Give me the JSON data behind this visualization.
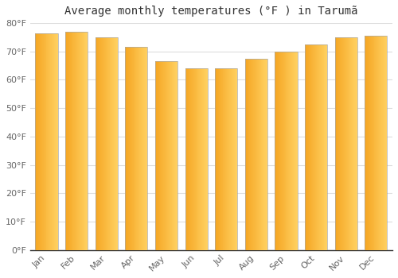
{
  "title": "Average monthly temperatures (°F ) in Tarumã",
  "months": [
    "Jan",
    "Feb",
    "Mar",
    "Apr",
    "May",
    "Jun",
    "Jul",
    "Aug",
    "Sep",
    "Oct",
    "Nov",
    "Dec"
  ],
  "values": [
    76.5,
    77.0,
    75.0,
    71.5,
    66.5,
    64.0,
    64.0,
    67.5,
    70.0,
    72.5,
    75.0,
    75.5
  ],
  "bar_color_left": "#F5A623",
  "bar_color_right": "#FFD060",
  "bar_edge_color": "#AAAAAA",
  "background_color": "#FFFFFF",
  "ylim": [
    0,
    80
  ],
  "yticks": [
    0,
    10,
    20,
    30,
    40,
    50,
    60,
    70,
    80
  ],
  "ytick_labels": [
    "0°F",
    "10°F",
    "20°F",
    "30°F",
    "40°F",
    "50°F",
    "60°F",
    "70°F",
    "80°F"
  ],
  "grid_color": "#DDDDDD",
  "title_fontsize": 10,
  "tick_fontsize": 8,
  "tick_color": "#666666"
}
